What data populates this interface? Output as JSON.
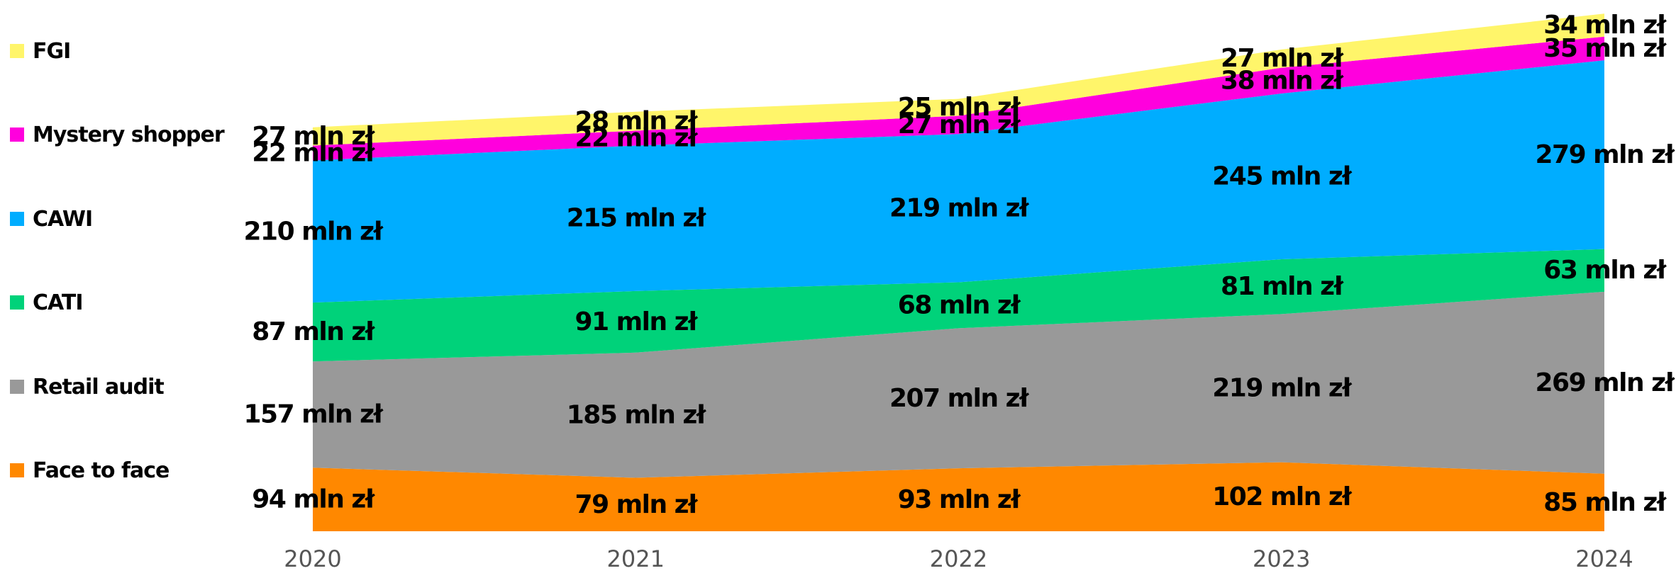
{
  "chart_data": {
    "type": "area",
    "stacked": true,
    "x": [
      "2020",
      "2021",
      "2022",
      "2023",
      "2024"
    ],
    "series": [
      {
        "name": "Face to face",
        "color": "#FF8800",
        "values": [
          94,
          79,
          93,
          102,
          85
        ],
        "labels": [
          "94 mln zł",
          "79 mln zł",
          "93 mln zł",
          "102 mln zł",
          "85 mln zł"
        ]
      },
      {
        "name": "Retail audit",
        "color": "#999999",
        "values": [
          157,
          185,
          207,
          219,
          269
        ],
        "labels": [
          "157 mln zł",
          "185 mln zł",
          "207 mln zł",
          "219 mln zł",
          "269 mln zł"
        ]
      },
      {
        "name": "CATI",
        "color": "#00D27A",
        "values": [
          87,
          91,
          68,
          81,
          63
        ],
        "labels": [
          "87 mln zł",
          "91 mln zł",
          "68 mln zł",
          "81 mln zł",
          "63 mln zł"
        ]
      },
      {
        "name": "CAWI",
        "color": "#00ADFF",
        "values": [
          210,
          215,
          219,
          245,
          279
        ],
        "labels": [
          "210 mln zł",
          "215 mln zł",
          "219 mln zł",
          "245 mln zł",
          "279 mln zł"
        ]
      },
      {
        "name": "Mystery shopper",
        "color": "#FF00DD",
        "values": [
          22,
          22,
          27,
          38,
          35
        ],
        "labels": [
          "22 mln zł",
          "22 mln zł",
          "27 mln zł",
          "38 mln zł",
          "35 mln zł"
        ]
      },
      {
        "name": "FGI",
        "color": "#FFF56A",
        "values": [
          27,
          28,
          25,
          27,
          34
        ],
        "labels": [
          "27 mln zł",
          "28 mln zł",
          "25 mln zł",
          "27 mln zł",
          "34 mln zł"
        ]
      }
    ],
    "legend": "left",
    "legend_order": [
      "FGI",
      "Mystery shopper",
      "CAWI",
      "CATI",
      "Retail audit",
      "Face to face"
    ],
    "ylim": [
      0,
      760
    ],
    "grid": false
  }
}
